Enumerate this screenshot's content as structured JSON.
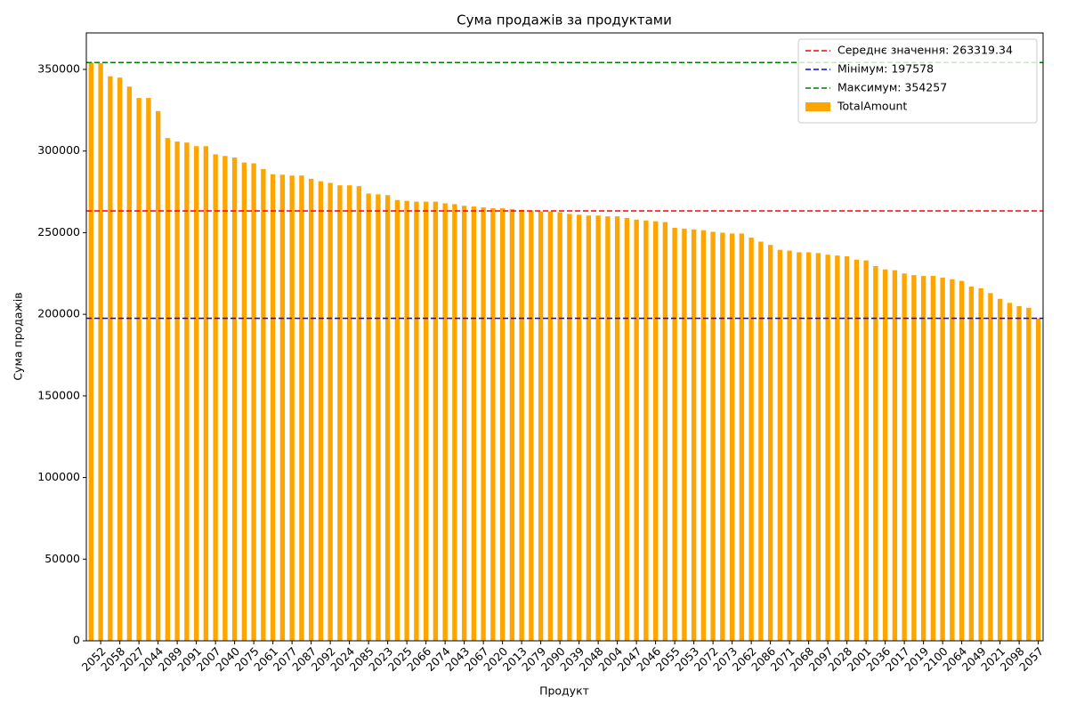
{
  "chart_data": {
    "type": "bar",
    "title": "Сума продажів за продуктами",
    "xlabel": "Продукт",
    "ylabel": "Сума продажів",
    "categories": [
      null,
      "2052",
      null,
      "2058",
      null,
      "2027",
      null,
      "2044",
      null,
      "2089",
      null,
      "2091",
      null,
      "2007",
      null,
      "2040",
      null,
      "2075",
      null,
      "2061",
      null,
      "2077",
      null,
      "2087",
      null,
      "2092",
      null,
      "2024",
      null,
      "2085",
      null,
      "2023",
      null,
      "2025",
      null,
      "2066",
      null,
      "2074",
      null,
      "2043",
      null,
      "2067",
      null,
      "2020",
      null,
      "2013",
      null,
      "2079",
      null,
      "2090",
      null,
      "2039",
      null,
      "2048",
      null,
      "2004",
      null,
      "2047",
      null,
      "2046",
      null,
      "2055",
      null,
      "2053",
      null,
      "2072",
      null,
      "2073",
      null,
      "2062",
      null,
      "2086",
      null,
      "2071",
      null,
      "2068",
      null,
      "2097",
      null,
      "2028",
      null,
      "2001",
      null,
      "2036",
      null,
      "2017",
      null,
      "2019",
      null,
      "2100",
      null,
      "2064",
      null,
      "2049",
      null,
      "2021",
      null,
      "2098",
      null,
      "2057"
    ],
    "series": [
      {
        "name": "TotalAmount",
        "color": "#ffa500",
        "values": [
          354257,
          353800,
          345800,
          345000,
          339500,
          332500,
          332500,
          324500,
          308000,
          305800,
          305200,
          303000,
          303000,
          298000,
          297000,
          296000,
          293000,
          292500,
          289000,
          285800,
          285500,
          285000,
          285000,
          283000,
          281500,
          280500,
          279000,
          279000,
          278500,
          274000,
          273500,
          273000,
          270000,
          269500,
          269000,
          269000,
          269000,
          268000,
          267500,
          266500,
          266000,
          265500,
          265000,
          265000,
          264500,
          264000,
          263500,
          263000,
          263000,
          262500,
          261500,
          261000,
          260500,
          260500,
          260000,
          260000,
          259000,
          258000,
          257500,
          257000,
          256500,
          253000,
          252500,
          252000,
          251500,
          250500,
          250000,
          249500,
          249500,
          247000,
          244500,
          242500,
          239500,
          239000,
          238000,
          238000,
          237500,
          236500,
          236000,
          235500,
          233500,
          233000,
          229500,
          227500,
          227000,
          225000,
          224000,
          223500,
          223500,
          222500,
          221500,
          220500,
          217000,
          216000,
          213000,
          209500,
          207000,
          205000,
          204000,
          197578
        ]
      }
    ],
    "hlines": [
      {
        "name": "Середнє значення: 263319.34",
        "value": 263319.34,
        "color": "#ff0000"
      },
      {
        "name": "Мінімум: 197578",
        "value": 197578,
        "color": "#0000ff"
      },
      {
        "name": "Максимум: 354257",
        "value": 354257,
        "color": "#008000"
      }
    ],
    "ylim": [
      0,
      372360
    ],
    "yticks": [
      0,
      50000,
      100000,
      150000,
      200000,
      250000,
      300000,
      350000
    ],
    "legend": "upper right"
  }
}
